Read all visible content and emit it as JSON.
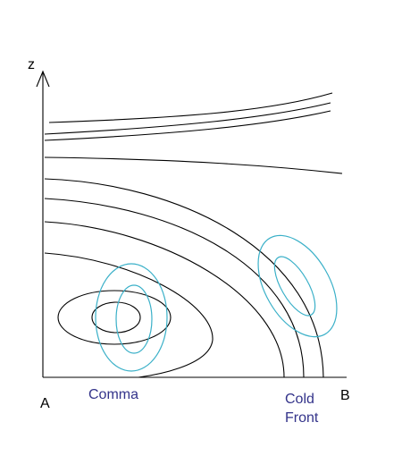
{
  "labels": {
    "axis_z": "z",
    "point_a": "A",
    "point_b": "B",
    "comma": "Comma",
    "cold_front": [
      "Cold",
      "Front"
    ]
  }
}
